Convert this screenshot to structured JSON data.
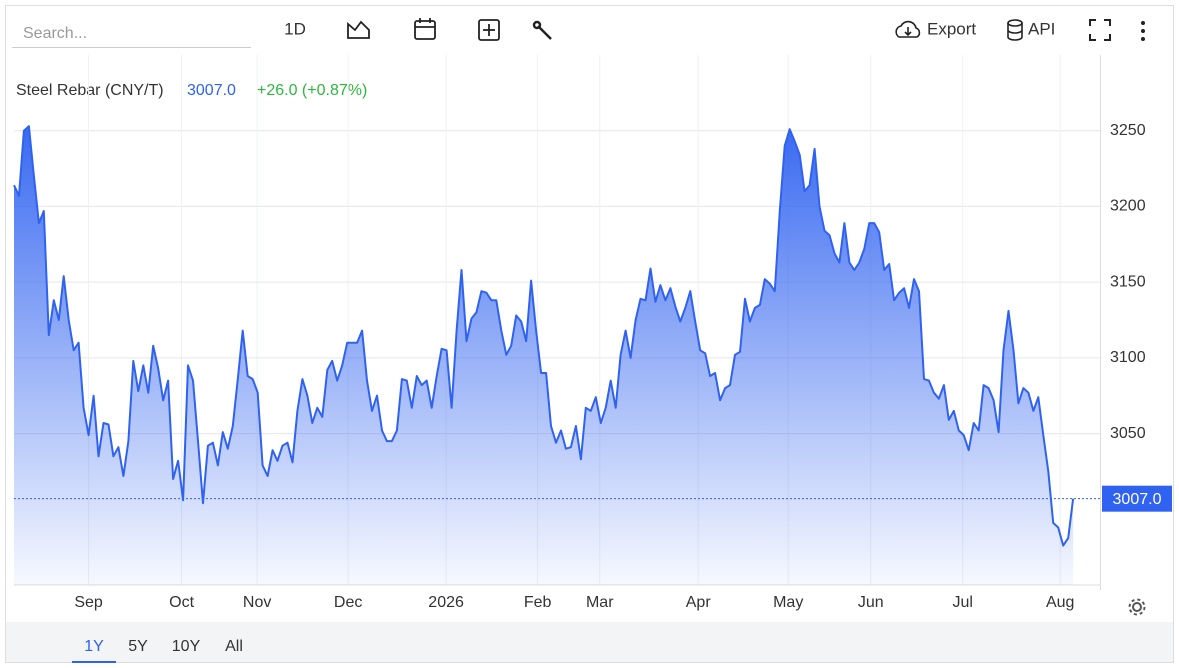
{
  "toolbar": {
    "search_placeholder": "Search...",
    "interval": "1D",
    "export": "Export",
    "api": "API"
  },
  "ranges": [
    "1Y",
    "5Y",
    "10Y",
    "All"
  ],
  "chart_data": {
    "type": "line",
    "title": "Steel Rebar (CNY/T)",
    "price": "3007.0",
    "change": "+26.0 (+0.87%)",
    "color": "#2f62f0",
    "grid": true,
    "xlim": [
      0,
      218
    ],
    "xticks": [
      {
        "value": 15,
        "label": "Sep"
      },
      {
        "value": 33.7,
        "label": "Oct"
      },
      {
        "value": 48.9,
        "label": "Nov"
      },
      {
        "value": 67.2,
        "label": "Dec"
      },
      {
        "value": 86.9,
        "label": "2026"
      },
      {
        "value": 105.3,
        "label": "Feb"
      },
      {
        "value": 117.8,
        "label": "Mar"
      },
      {
        "value": 137.6,
        "label": "Apr"
      },
      {
        "value": 155.7,
        "label": "May"
      },
      {
        "value": 172.3,
        "label": "Jun"
      },
      {
        "value": 190.8,
        "label": "Jul"
      },
      {
        "value": 210.4,
        "label": "Aug"
      }
    ],
    "ylim": [
      2950,
      3300
    ],
    "yticks": [
      3050,
      3100,
      3150,
      3200,
      3250
    ],
    "values": [
      3214,
      3207,
      3250,
      3253,
      3220,
      3189,
      3197,
      3115,
      3138,
      3125,
      3154,
      3125,
      3105,
      3110,
      3067,
      3049,
      3075,
      3035,
      3057,
      3056,
      3035,
      3041,
      3022,
      3045,
      3098,
      3078,
      3095,
      3077,
      3108,
      3093,
      3072,
      3085,
      3020,
      3032,
      3006,
      3095,
      3085,
      3045,
      3004,
      3042,
      3044,
      3029,
      3051,
      3040,
      3055,
      3086,
      3118,
      3088,
      3086,
      3077,
      3029,
      3022,
      3039,
      3032,
      3042,
      3044,
      3031,
      3065,
      3086,
      3075,
      3057,
      3067,
      3061,
      3092,
      3098,
      3085,
      3095,
      3110,
      3110,
      3110,
      3118,
      3085,
      3065,
      3075,
      3052,
      3045,
      3045,
      3052,
      3086,
      3085,
      3067,
      3088,
      3082,
      3085,
      3067,
      3088,
      3106,
      3105,
      3067,
      3118,
      3158,
      3111,
      3126,
      3130,
      3144,
      3143,
      3138,
      3138,
      3118,
      3102,
      3108,
      3128,
      3124,
      3111,
      3151,
      3118,
      3090,
      3090,
      3055,
      3044,
      3052,
      3040,
      3041,
      3055,
      3033,
      3067,
      3065,
      3074,
      3057,
      3067,
      3085,
      3067,
      3102,
      3118,
      3100,
      3125,
      3139,
      3138,
      3159,
      3137,
      3148,
      3138,
      3146,
      3134,
      3124,
      3133,
      3144,
      3124,
      3105,
      3103,
      3088,
      3090,
      3072,
      3080,
      3082,
      3102,
      3104,
      3139,
      3124,
      3133,
      3135,
      3152,
      3149,
      3144,
      3197,
      3240,
      3251,
      3243,
      3234,
      3210,
      3214,
      3238,
      3200,
      3184,
      3181,
      3169,
      3163,
      3189,
      3163,
      3158,
      3163,
      3172,
      3189,
      3189,
      3183,
      3158,
      3162,
      3138,
      3143,
      3146,
      3133,
      3152,
      3144,
      3086,
      3085,
      3077,
      3073,
      3082,
      3059,
      3065,
      3052,
      3049,
      3039,
      3057,
      3052,
      3082,
      3080,
      3072,
      3051,
      3105,
      3131,
      3105,
      3070,
      3080,
      3077,
      3065,
      3074,
      3049,
      3025,
      2991,
      2988,
      2976,
      2981,
      3007
    ]
  }
}
